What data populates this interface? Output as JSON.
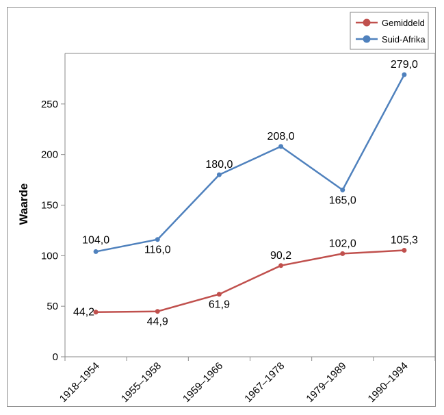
{
  "chart_data": {
    "type": "line",
    "categories": [
      "1918–1954",
      "1955–1958",
      "1959–1966",
      "1967–1978",
      "1979–1989",
      "1990–1994"
    ],
    "series": [
      {
        "name": "Gemiddeld",
        "color": "#c0504d",
        "values": [
          44.2,
          44.9,
          61.9,
          90.2,
          102.0,
          105.3
        ],
        "labels": [
          "44,2",
          "44,9",
          "61,9",
          "90,2",
          "102,0",
          "105,3"
        ]
      },
      {
        "name": "Suid-Afrika",
        "color": "#4f81bd",
        "values": [
          104.0,
          116.0,
          180.0,
          208.0,
          165.0,
          279.0
        ],
        "labels": [
          "104,0",
          "116,0",
          "180,0",
          "208,0",
          "165,0",
          "279,0"
        ]
      }
    ],
    "ylabel": "Waarde",
    "xlabel": "",
    "ylim": [
      0,
      300
    ],
    "yticks": [
      0,
      50,
      100,
      150,
      200,
      250
    ],
    "grid": false,
    "legend": "top-right"
  }
}
